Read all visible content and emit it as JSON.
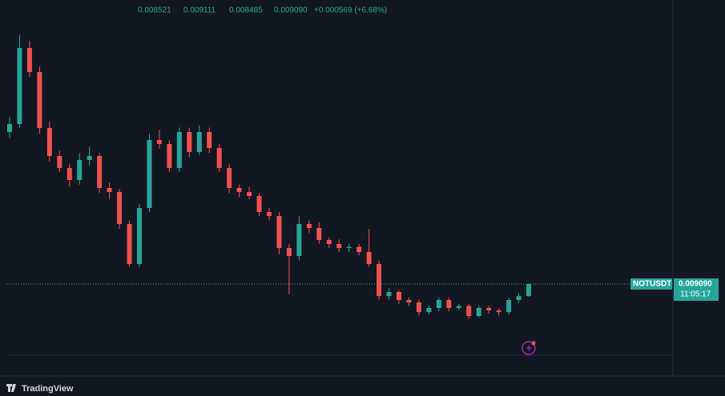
{
  "chart_data": {
    "type": "candlestick",
    "symbol": "NOTUSDT",
    "ohlc_labels": [
      "0.008521",
      "0.009111",
      "0.008485",
      "0.009090"
    ],
    "change_label": "+0.000569 (+6.68%)",
    "countdown": "11:05:17",
    "up_color": "#26a69a",
    "down_color": "#ef5350",
    "ylim": [
      0.005717,
      0.022545
    ],
    "open": [
      0.01629,
      0.01667,
      0.02027,
      0.019134,
      0.016481,
      0.015154,
      0.014586,
      0.014017,
      0.014965,
      0.015154,
      0.013638,
      0.013449,
      0.011933,
      0.010038,
      0.012691,
      0.015912,
      0.015723,
      0.014586,
      0.016291,
      0.015344,
      0.016291,
      0.015533,
      0.014586,
      0.013638,
      0.013449,
      0.013259,
      0.012501,
      0.012312,
      0.010796,
      0.010417,
      0.011933,
      0.011743,
      0.011175,
      0.010985,
      0.010796,
      0.01085,
      0.010606,
      0.010038,
      0.008521,
      0.008711,
      0.008332,
      0.008218,
      0.007763,
      0.007953,
      0.008332,
      0.007953,
      0.00805,
      0.007574,
      0.007953,
      0.007839,
      0.007763,
      0.008332,
      0.008521
    ],
    "high": [
      0.017,
      0.0209,
      0.0206,
      0.0194,
      0.0168,
      0.0154,
      0.0148,
      0.0153,
      0.0156,
      0.0153,
      0.0139,
      0.0136,
      0.0121,
      0.0129,
      0.0162,
      0.0164,
      0.0159,
      0.0165,
      0.0165,
      0.0166,
      0.0165,
      0.0157,
      0.0148,
      0.0138,
      0.0137,
      0.0134,
      0.0127,
      0.0125,
      0.011,
      0.0123,
      0.0121,
      0.012,
      0.0113,
      0.0112,
      0.011,
      0.011,
      0.0117,
      0.0102,
      0.0089,
      0.0088,
      0.00845,
      0.00835,
      0.00808,
      0.00845,
      0.00845,
      0.00815,
      0.00815,
      0.00808,
      0.00805,
      0.00795,
      0.00845,
      0.00865,
      0.009111
    ],
    "low": [
      0.016,
      0.0165,
      0.0189,
      0.0162,
      0.0149,
      0.0144,
      0.0137,
      0.0138,
      0.0147,
      0.0134,
      0.0131,
      0.0117,
      0.0099,
      0.0099,
      0.0125,
      0.0155,
      0.0144,
      0.0144,
      0.0151,
      0.0152,
      0.0153,
      0.0144,
      0.0134,
      0.0132,
      0.0131,
      0.0123,
      0.0121,
      0.0105,
      0.0086,
      0.0102,
      0.0115,
      0.011,
      0.0108,
      0.0106,
      0.0106,
      0.01045,
      0.0099,
      0.00835,
      0.00835,
      0.00815,
      0.00805,
      0.0076,
      0.00765,
      0.0078,
      0.0078,
      0.00785,
      0.00745,
      0.0075,
      0.0077,
      0.0076,
      0.00765,
      0.0082,
      0.008485
    ],
    "close": [
      0.01667,
      0.02027,
      0.019134,
      0.016481,
      0.015154,
      0.014586,
      0.014017,
      0.014965,
      0.015154,
      0.013638,
      0.013449,
      0.011933,
      0.010038,
      0.012691,
      0.015912,
      0.015723,
      0.014586,
      0.016291,
      0.015344,
      0.016291,
      0.015533,
      0.014586,
      0.013638,
      0.013449,
      0.013259,
      0.012501,
      0.012312,
      0.010796,
      0.010417,
      0.011933,
      0.011743,
      0.011175,
      0.010985,
      0.010796,
      0.01085,
      0.010606,
      0.010038,
      0.008521,
      0.008711,
      0.008332,
      0.008218,
      0.007763,
      0.007953,
      0.008332,
      0.007953,
      0.00805,
      0.007574,
      0.007953,
      0.007839,
      0.007763,
      0.008332,
      0.008521,
      0.00909
    ]
  },
  "brand": "TradingView"
}
